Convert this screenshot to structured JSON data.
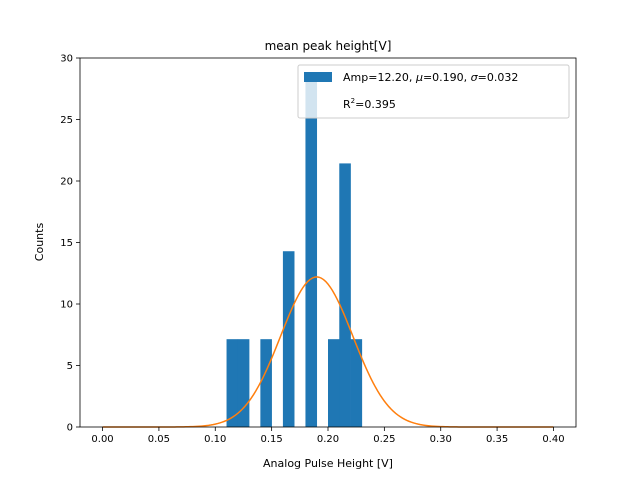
{
  "chart_data": {
    "type": "bar",
    "title": "mean peak height[V]",
    "xlabel": "Analog Pulse Height [V]",
    "ylabel": "Counts",
    "xlim": [
      -0.02,
      0.42
    ],
    "ylim": [
      0,
      30
    ],
    "xticks": [
      "0.00",
      "0.05",
      "0.10",
      "0.15",
      "0.20",
      "0.25",
      "0.30",
      "0.35",
      "0.40"
    ],
    "yticks": [
      "0",
      "5",
      "10",
      "15",
      "20",
      "25",
      "30"
    ],
    "grid": false,
    "legend_position": "top-right",
    "histogram": {
      "color": "#1f77b4",
      "bin_width": 0.01,
      "bins": [
        {
          "start": 0.11,
          "value": 7.14
        },
        {
          "start": 0.12,
          "value": 7.14
        },
        {
          "start": 0.14,
          "value": 7.14
        },
        {
          "start": 0.16,
          "value": 14.29
        },
        {
          "start": 0.18,
          "value": 28.57
        },
        {
          "start": 0.2,
          "value": 7.14
        },
        {
          "start": 0.21,
          "value": 21.43
        },
        {
          "start": 0.22,
          "value": 7.14
        }
      ]
    },
    "fit": {
      "color": "#ff7f0e",
      "amp": 12.2,
      "mu": 0.19,
      "sigma": 0.032,
      "x_range": [
        0.0,
        0.4
      ]
    },
    "legend": {
      "line1_prefix": "Amp=12.20, ",
      "mu_symbol": "μ",
      "line1_mid": "=0.190, ",
      "sigma_symbol": "σ",
      "line1_suffix": "=0.032",
      "r2_base": "R",
      "r2_sup": "2",
      "r2_value": "=0.395"
    }
  }
}
